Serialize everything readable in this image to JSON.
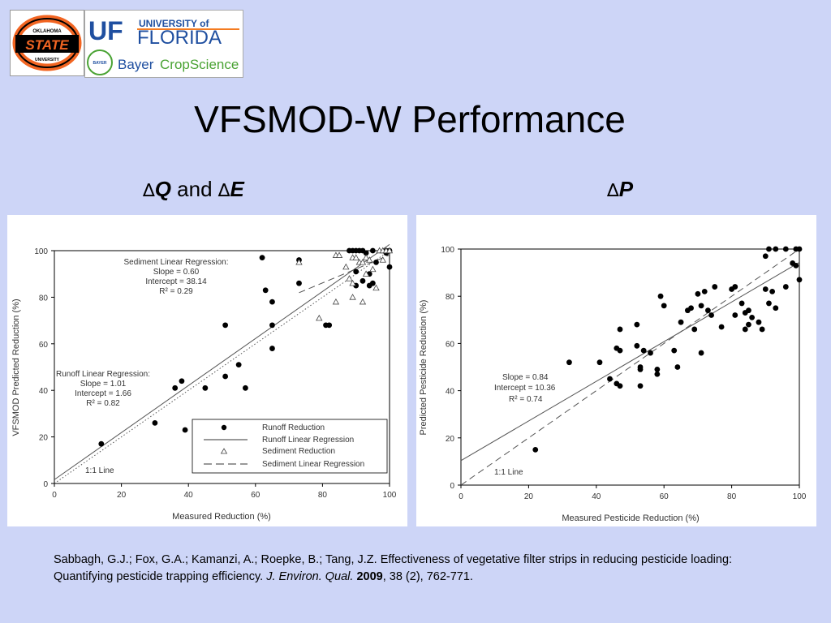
{
  "slide": {
    "title": "VFSMOD-W Performance",
    "label_left_delta1": "∆",
    "label_left_q": "Q",
    "label_left_and": " and ",
    "label_left_delta2": "∆",
    "label_left_e": "E",
    "label_right_delta": "∆",
    "label_right_p": "P"
  },
  "logos": {
    "osu_line1": "OKLAHOMA",
    "osu_line2": "STATE",
    "osu_line3": "UNIVERSITY",
    "uf_mark": "UF",
    "uf_line1": "UNIVERSITY of",
    "uf_line2": "FLORIDA",
    "bayer_mark": "BAYER",
    "bayer_text": "Bayer",
    "cropscience_text": "CropScience",
    "osu_color": "#f26522",
    "uf_blue": "#1f4fa0",
    "uf_orange": "#f47b20",
    "bayer_green": "#4aa334"
  },
  "citation": {
    "authors": "Sabbagh, G.J.; Fox, G.A.; Kamanzi, A.; Roepke, B.; Tang, J.Z. Effectiveness of vegetative filter strips in reducing pesticide loading: Quantifying pesticide trapping efficiency. ",
    "journal": "J. Environ. Qual.",
    "year": "2009",
    "rest": ", 38 (2), 762-771."
  },
  "chart_data": [
    {
      "type": "scatter",
      "xlabel": "Measured Reduction (%)",
      "ylabel": "VFSMOD Predicted Reduction (%)",
      "xlim": [
        0,
        100
      ],
      "ylim": [
        0,
        100
      ],
      "xticks": [
        "0",
        "20",
        "40",
        "60",
        "80",
        "100"
      ],
      "yticks": [
        "0",
        "20",
        "40",
        "60",
        "80",
        "100"
      ],
      "grid": false,
      "legend_position": "bottom-right",
      "legend": [
        "Runoff Reduction",
        "Runoff Linear Regression",
        "Sediment Reduction",
        "Sediment Linear Regression"
      ],
      "annotations": {
        "sediment": [
          "Sediment Linear Regression:",
          "Slope = 0.60",
          "Intercept = 38.14",
          "R² = 0.29"
        ],
        "runoff": [
          "Runoff Linear Regression:",
          "Slope = 1.01",
          "Intercept = 1.66",
          "R² = 0.82"
        ],
        "one_to_one": "1:1 Line"
      },
      "series": [
        {
          "name": "Runoff Reduction",
          "marker": "filled-circle",
          "points": [
            [
              14,
              17
            ],
            [
              30,
              26
            ],
            [
              36,
              41
            ],
            [
              38,
              44
            ],
            [
              39,
              23
            ],
            [
              45,
              41
            ],
            [
              51,
              46
            ],
            [
              51,
              68
            ],
            [
              55,
              51
            ],
            [
              57,
              41
            ],
            [
              62,
              97
            ],
            [
              63,
              83
            ],
            [
              65,
              78
            ],
            [
              65,
              68
            ],
            [
              65,
              58
            ],
            [
              73,
              96
            ],
            [
              73,
              86
            ],
            [
              81,
              68
            ],
            [
              82,
              68
            ],
            [
              88,
              100
            ],
            [
              89,
              100
            ],
            [
              90,
              85
            ],
            [
              90,
              91
            ],
            [
              90,
              100
            ],
            [
              91,
              100
            ],
            [
              92,
              87
            ],
            [
              92,
              100
            ],
            [
              93,
              99
            ],
            [
              94,
              90
            ],
            [
              94,
              85
            ],
            [
              95,
              86
            ],
            [
              95,
              100
            ],
            [
              96,
              95
            ],
            [
              99,
              99
            ],
            [
              99,
              100
            ],
            [
              100,
              93
            ],
            [
              100,
              100
            ]
          ]
        },
        {
          "name": "Sediment Reduction",
          "marker": "open-triangle",
          "points": [
            [
              73,
              95
            ],
            [
              79,
              71
            ],
            [
              84,
              78
            ],
            [
              84,
              98
            ],
            [
              85,
              98
            ],
            [
              87,
              93
            ],
            [
              88,
              88
            ],
            [
              89,
              80
            ],
            [
              89,
              86
            ],
            [
              89,
              97
            ],
            [
              90,
              97
            ],
            [
              91,
              95
            ],
            [
              92,
              78
            ],
            [
              92,
              95
            ],
            [
              93,
              90
            ],
            [
              93,
              97
            ],
            [
              94,
              96
            ],
            [
              95,
              92
            ],
            [
              96,
              84
            ],
            [
              97,
              100
            ],
            [
              98,
              96
            ],
            [
              98,
              100
            ],
            [
              99,
              100
            ],
            [
              100,
              100
            ]
          ]
        }
      ],
      "lines": [
        {
          "name": "Runoff Linear Regression",
          "style": "solid",
          "slope": 1.01,
          "intercept": 1.66,
          "x_range": [
            0,
            100
          ]
        },
        {
          "name": "Sediment Linear Regression",
          "style": "dashed",
          "slope": 0.6,
          "intercept": 38.14,
          "x_range": [
            73,
            100
          ]
        },
        {
          "name": "1:1 Line",
          "style": "dotted",
          "slope": 1,
          "intercept": 0,
          "x_range": [
            0,
            100
          ]
        }
      ]
    },
    {
      "type": "scatter",
      "xlabel": "Measured Pesticide Reduction (%)",
      "ylabel": "Predicted Pesticide Reduction (%)",
      "xlim": [
        0,
        100
      ],
      "ylim": [
        0,
        100
      ],
      "xticks": [
        "0",
        "20",
        "40",
        "60",
        "80",
        "100"
      ],
      "yticks": [
        "0",
        "20",
        "40",
        "60",
        "80",
        "100"
      ],
      "grid": false,
      "annotations": {
        "regression": [
          "Slope = 0.84",
          "Intercept = 10.36",
          "R² = 0.74"
        ],
        "one_to_one": "1:1 Line"
      },
      "series": [
        {
          "name": "",
          "marker": "filled-circle",
          "points": [
            [
              22,
              15
            ],
            [
              32,
              52
            ],
            [
              41,
              52
            ],
            [
              44,
              45
            ],
            [
              46,
              43
            ],
            [
              46,
              58
            ],
            [
              47,
              57
            ],
            [
              47,
              42
            ],
            [
              47,
              66
            ],
            [
              52,
              68
            ],
            [
              52,
              59
            ],
            [
              53,
              42
            ],
            [
              53,
              49
            ],
            [
              53,
              50
            ],
            [
              54,
              57
            ],
            [
              56,
              56
            ],
            [
              58,
              47
            ],
            [
              58,
              49
            ],
            [
              59,
              80
            ],
            [
              60,
              76
            ],
            [
              63,
              57
            ],
            [
              64,
              50
            ],
            [
              65,
              69
            ],
            [
              67,
              74
            ],
            [
              68,
              75
            ],
            [
              69,
              66
            ],
            [
              70,
              81
            ],
            [
              71,
              56
            ],
            [
              71,
              76
            ],
            [
              72,
              82
            ],
            [
              73,
              74
            ],
            [
              74,
              72
            ],
            [
              75,
              84
            ],
            [
              77,
              67
            ],
            [
              80,
              83
            ],
            [
              81,
              72
            ],
            [
              81,
              84
            ],
            [
              83,
              77
            ],
            [
              84,
              66
            ],
            [
              84,
              73
            ],
            [
              85,
              74
            ],
            [
              85,
              68
            ],
            [
              86,
              71
            ],
            [
              88,
              69
            ],
            [
              89,
              66
            ],
            [
              90,
              97
            ],
            [
              90,
              83
            ],
            [
              91,
              100
            ],
            [
              91,
              77
            ],
            [
              92,
              82
            ],
            [
              93,
              75
            ],
            [
              93,
              100
            ],
            [
              96,
              84
            ],
            [
              96,
              100
            ],
            [
              98,
              94
            ],
            [
              99,
              93
            ],
            [
              99,
              100
            ],
            [
              100,
              100
            ],
            [
              100,
              87
            ]
          ]
        }
      ],
      "lines": [
        {
          "name": "Linear Regression",
          "style": "solid",
          "slope": 0.84,
          "intercept": 10.36,
          "x_range": [
            0,
            100
          ]
        },
        {
          "name": "1:1 Line",
          "style": "dashed",
          "slope": 1,
          "intercept": 0,
          "x_range": [
            0,
            100
          ]
        }
      ]
    }
  ]
}
